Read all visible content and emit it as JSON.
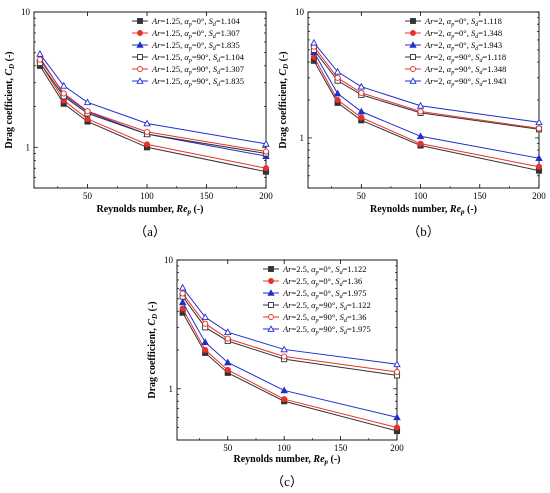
{
  "panel_labels": [
    "（a）",
    "（b）",
    "（c）"
  ],
  "chart_data": [
    {
      "type": "line",
      "title": "",
      "panel": "（a）",
      "xlabel_prefix": "Reynolds number, ",
      "xlabel_var": "Re",
      "xlabel_sub": "p",
      "xlabel_suffix": " (-)",
      "ylabel_prefix": "Drag coefficient, ",
      "ylabel_var": "C",
      "ylabel_sub": "D",
      "ylabel_suffix": " (-)",
      "xlim": [
        5,
        200
      ],
      "ylim": [
        0.5,
        10
      ],
      "yscale": "log",
      "xticks": [
        50,
        100,
        150,
        200
      ],
      "yticks": [
        1,
        10
      ],
      "legend_position": "top-right",
      "x": [
        10,
        30,
        50,
        100,
        200
      ],
      "series": [
        {
          "ar": "1.25",
          "alpha": "0°",
          "sd": "1.104",
          "marker": "square",
          "filled": true,
          "color": "#333333",
          "values": [
            4.0,
            2.1,
            1.55,
            1.0,
            0.66
          ]
        },
        {
          "ar": "1.25",
          "alpha": "0°",
          "sd": "1.307",
          "marker": "circle",
          "filled": true,
          "color": "#e8312a",
          "values": [
            4.25,
            2.22,
            1.62,
            1.05,
            0.7
          ]
        },
        {
          "ar": "1.25",
          "alpha": "0°",
          "sd": "1.835",
          "marker": "triangle",
          "filled": true,
          "color": "#1f2ecf",
          "values": [
            4.6,
            2.45,
            1.83,
            1.25,
            0.86
          ]
        },
        {
          "ar": "1.25",
          "alpha": "90°",
          "sd": "1.104",
          "marker": "square",
          "filled": false,
          "color": "#333333",
          "values": [
            4.2,
            2.38,
            1.78,
            1.25,
            0.9
          ]
        },
        {
          "ar": "1.25",
          "alpha": "90°",
          "sd": "1.307",
          "marker": "circle",
          "filled": false,
          "color": "#e8312a",
          "values": [
            4.45,
            2.5,
            1.85,
            1.3,
            0.93
          ]
        },
        {
          "ar": "1.25",
          "alpha": "90°",
          "sd": "1.835",
          "marker": "triangle",
          "filled": false,
          "color": "#1f2ecf",
          "values": [
            4.9,
            2.85,
            2.15,
            1.5,
            1.06
          ]
        }
      ]
    },
    {
      "type": "line",
      "title": "",
      "panel": "（b）",
      "xlabel_prefix": "Reynolds number, ",
      "xlabel_var": "Re",
      "xlabel_sub": "p",
      "xlabel_suffix": " (-)",
      "ylabel_prefix": "Drag coefficient, ",
      "ylabel_var": "C",
      "ylabel_sub": "D",
      "ylabel_suffix": " (-)",
      "xlim": [
        5,
        200
      ],
      "ylim": [
        0.4,
        10
      ],
      "yscale": "log",
      "xticks": [
        50,
        100,
        150,
        200
      ],
      "yticks": [
        1,
        10
      ],
      "legend_position": "top-right",
      "x": [
        10,
        30,
        50,
        100,
        200
      ],
      "series": [
        {
          "ar": "2",
          "alpha": "0°",
          "sd": "1.118",
          "marker": "square",
          "filled": true,
          "color": "#333333",
          "values": [
            4.1,
            1.9,
            1.38,
            0.87,
            0.55
          ]
        },
        {
          "ar": "2",
          "alpha": "0°",
          "sd": "1.348",
          "marker": "circle",
          "filled": true,
          "color": "#e8312a",
          "values": [
            4.4,
            2.0,
            1.45,
            0.9,
            0.59
          ]
        },
        {
          "ar": "2",
          "alpha": "0°",
          "sd": "1.943",
          "marker": "triangle",
          "filled": true,
          "color": "#1f2ecf",
          "values": [
            4.8,
            2.25,
            1.62,
            1.03,
            0.69
          ]
        },
        {
          "ar": "2",
          "alpha": "90°",
          "sd": "1.118",
          "marker": "square",
          "filled": false,
          "color": "#333333",
          "values": [
            5.0,
            2.85,
            2.2,
            1.58,
            1.17
          ]
        },
        {
          "ar": "2",
          "alpha": "90°",
          "sd": "1.348",
          "marker": "circle",
          "filled": false,
          "color": "#e8312a",
          "values": [
            5.3,
            3.0,
            2.28,
            1.62,
            1.19
          ]
        },
        {
          "ar": "2",
          "alpha": "90°",
          "sd": "1.943",
          "marker": "triangle",
          "filled": false,
          "color": "#1f2ecf",
          "values": [
            5.7,
            3.35,
            2.55,
            1.8,
            1.33
          ]
        }
      ]
    },
    {
      "type": "line",
      "title": "",
      "panel": "（c）",
      "xlabel_prefix": "Reynolds number, ",
      "xlabel_var": "Re",
      "xlabel_sub": "p",
      "xlabel_suffix": " (-)",
      "ylabel_prefix": "Drag coefficient, ",
      "ylabel_var": "C",
      "ylabel_sub": "D",
      "ylabel_suffix": " (-)",
      "xlim": [
        5,
        200
      ],
      "ylim": [
        0.4,
        10
      ],
      "yscale": "log",
      "xticks": [
        50,
        100,
        150,
        200
      ],
      "yticks": [
        1,
        10
      ],
      "legend_position": "top-right",
      "x": [
        10,
        30,
        50,
        100,
        200
      ],
      "series": [
        {
          "ar": "2.5",
          "alpha": "0°",
          "sd": "1.122",
          "marker": "square",
          "filled": true,
          "color": "#333333",
          "values": [
            3.9,
            1.9,
            1.33,
            0.8,
            0.47
          ]
        },
        {
          "ar": "2.5",
          "alpha": "0°",
          "sd": "1.36",
          "marker": "circle",
          "filled": true,
          "color": "#e8312a",
          "values": [
            4.2,
            2.0,
            1.4,
            0.83,
            0.5
          ]
        },
        {
          "ar": "2.5",
          "alpha": "0°",
          "sd": "1.975",
          "marker": "triangle",
          "filled": true,
          "color": "#1f2ecf",
          "values": [
            4.7,
            2.3,
            1.6,
            0.97,
            0.6
          ]
        },
        {
          "ar": "2.5",
          "alpha": "90°",
          "sd": "1.122",
          "marker": "square",
          "filled": false,
          "color": "#333333",
          "values": [
            5.2,
            3.0,
            2.35,
            1.7,
            1.27
          ]
        },
        {
          "ar": "2.5",
          "alpha": "90°",
          "sd": "1.36",
          "marker": "circle",
          "filled": false,
          "color": "#e8312a",
          "values": [
            5.5,
            3.2,
            2.45,
            1.78,
            1.35
          ]
        },
        {
          "ar": "2.5",
          "alpha": "90°",
          "sd": "1.975",
          "marker": "triangle",
          "filled": false,
          "color": "#1f2ecf",
          "values": [
            6.1,
            3.6,
            2.75,
            2.02,
            1.55
          ]
        }
      ]
    }
  ]
}
